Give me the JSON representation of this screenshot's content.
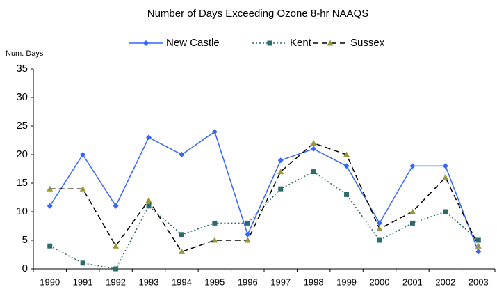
{
  "chart_data": {
    "type": "line",
    "title": "Number of Days Exceeding Ozone 8-hr NAAQS",
    "y_label": "Num. Days",
    "categories": [
      "1990",
      "1991",
      "1992",
      "1993",
      "1994",
      "1995",
      "1996",
      "1997",
      "1998",
      "1999",
      "2000",
      "2001",
      "2002",
      "2003"
    ],
    "series": [
      {
        "name": "New Castle",
        "color": "#3366ff",
        "line_style": "solid",
        "marker": "diamond",
        "marker_color": "#3366ff",
        "values": [
          11,
          20,
          11,
          23,
          20,
          24,
          6,
          19,
          21,
          18,
          8,
          18,
          18,
          3
        ]
      },
      {
        "name": "Kent",
        "color": "#2e6b6b",
        "line_style": "dotted",
        "marker": "square",
        "marker_color": "#2e6b6b",
        "values": [
          4,
          1,
          0,
          11,
          6,
          8,
          8,
          14,
          17,
          13,
          5,
          8,
          10,
          5
        ]
      },
      {
        "name": "Sussex",
        "color": "#000000",
        "line_style": "dashed",
        "marker": "triangle",
        "marker_color": "#999933",
        "values": [
          14,
          14,
          4,
          12,
          3,
          5,
          5,
          17,
          22,
          20,
          7,
          10,
          16,
          4
        ]
      }
    ],
    "ylim": [
      0,
      35
    ],
    "yticks": [
      0,
      5,
      10,
      15,
      20,
      25,
      30,
      35
    ],
    "grid": false,
    "legend": "top"
  }
}
